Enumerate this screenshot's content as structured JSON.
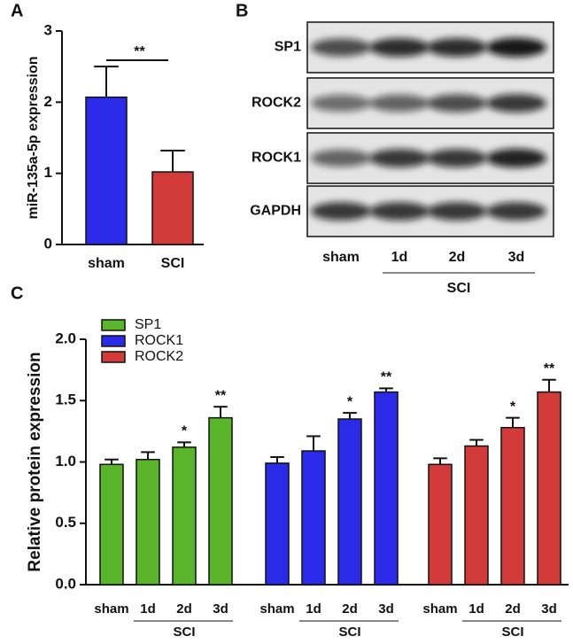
{
  "chart_data": [
    {
      "type": "bar",
      "panel_label": "A",
      "ylabel": "miR-135a-5p expression",
      "categories": [
        "sham",
        "SCI"
      ],
      "values": [
        2.07,
        1.02
      ],
      "errors": [
        0.43,
        0.3
      ],
      "colors": [
        "#2a2ae8",
        "#d33b3b"
      ],
      "significance": "**",
      "ylim": [
        0,
        3
      ],
      "yticks": [
        0,
        1,
        2,
        3
      ]
    },
    {
      "type": "grouped_bar",
      "panel_label": "C",
      "ylabel": "Relative protein expression",
      "categories": [
        "sham",
        "1d",
        "2d",
        "3d"
      ],
      "group_label": "SCI",
      "series": [
        {
          "name": "SP1",
          "color": "#5ab52b",
          "values": [
            0.98,
            1.02,
            1.12,
            1.36
          ],
          "errors": [
            0.04,
            0.06,
            0.04,
            0.09
          ],
          "annotations": [
            null,
            null,
            "*",
            "**"
          ]
        },
        {
          "name": "ROCK1",
          "color": "#2a2ae8",
          "values": [
            0.99,
            1.09,
            1.35,
            1.57
          ],
          "errors": [
            0.05,
            0.12,
            0.05,
            0.03
          ],
          "annotations": [
            null,
            null,
            "*",
            "**"
          ]
        },
        {
          "name": "ROCK2",
          "color": "#d33b3b",
          "values": [
            0.98,
            1.13,
            1.28,
            1.57
          ],
          "errors": [
            0.05,
            0.05,
            0.08,
            0.1
          ],
          "annotations": [
            null,
            null,
            "*",
            "**"
          ]
        }
      ],
      "ylim": [
        0,
        2.0
      ],
      "yticks": [
        {
          "value": 0,
          "label": "0.0"
        },
        {
          "value": 0.5,
          "label": "0.5"
        },
        {
          "value": 1,
          "label": "1.0"
        },
        {
          "value": 1.5,
          "label": "1.5"
        },
        {
          "value": 2,
          "label": "2.0"
        }
      ],
      "legend": "top-left"
    }
  ],
  "blot": {
    "panel_label": "B",
    "rows": [
      "SP1",
      "ROCK2",
      "ROCK1",
      "GAPDH"
    ],
    "columns": [
      "sham",
      "1d",
      "2d",
      "3d"
    ],
    "group_label": "SCI"
  }
}
